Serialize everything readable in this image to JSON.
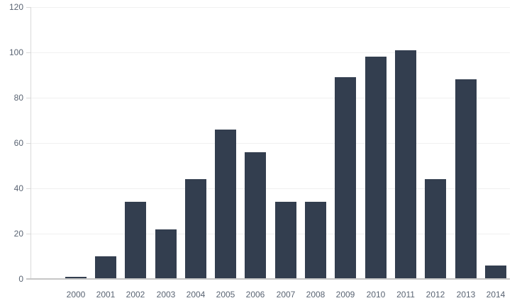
{
  "chart_data": {
    "type": "bar",
    "title": "",
    "xlabel": "",
    "ylabel": "",
    "categories": [
      "2000",
      "2001",
      "2002",
      "2003",
      "2004",
      "2005",
      "2006",
      "2007",
      "2008",
      "2009",
      "2010",
      "2011",
      "2012",
      "2013",
      "2014"
    ],
    "values": [
      1,
      10,
      34,
      22,
      44,
      66,
      56,
      34,
      34,
      89,
      98,
      101,
      44,
      88,
      6
    ],
    "yticks": [
      0,
      20,
      40,
      60,
      80,
      100,
      120
    ],
    "ylim": [
      0,
      120
    ],
    "grid": "horizontal",
    "legend": "none",
    "colors": {
      "bar": "#333E4F",
      "gridline": "#f0f0f0",
      "x_axis_line": "#c6c6c6",
      "y_axis_line": "#d9d9d9",
      "tick_mark": "#d9d9d9",
      "tick_label": "#5a6473",
      "background": "#ffffff"
    }
  }
}
